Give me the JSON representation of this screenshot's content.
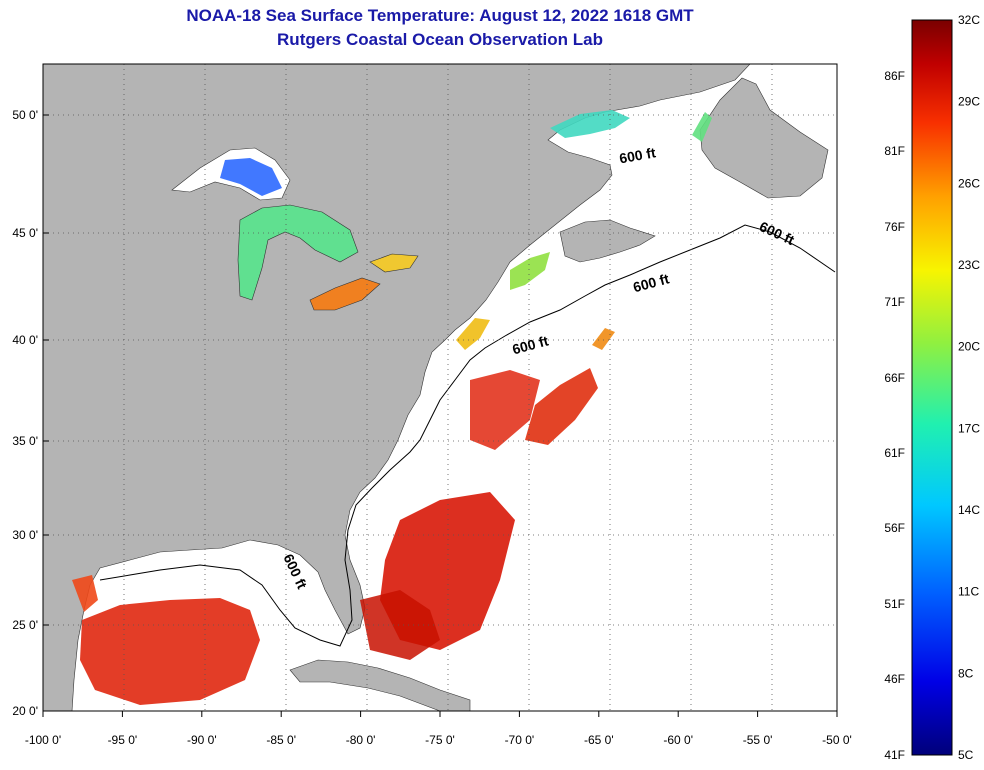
{
  "header": {
    "title": "NOAA-18 Sea Surface Temperature:  August 12, 2022 1618 GMT",
    "subtitle": "Rutgers Coastal Ocean Observation Lab"
  },
  "map": {
    "lon_range": [
      -100,
      -50
    ],
    "lat_range": [
      20,
      52.5
    ],
    "lon_ticks": [
      "-100 0'",
      "-95 0'",
      "-90 0'",
      "-85 0'",
      "-80 0'",
      "-75 0'",
      "-70 0'",
      "-65 0'",
      "-60 0'",
      "-55 0'",
      "-50 0'"
    ],
    "lat_ticks": [
      {
        "value": 50,
        "label": "50 0'"
      },
      {
        "value": 45,
        "label": "45 0'"
      },
      {
        "value": 40,
        "label": "40 0'"
      },
      {
        "value": 35,
        "label": "35 0'"
      },
      {
        "value": 30,
        "label": "30 0'"
      },
      {
        "value": 25,
        "label": "25 0'"
      },
      {
        "value": 20,
        "label": "20 0'"
      }
    ],
    "contour_label": "600 ft",
    "contour_label_count": 5,
    "land_color": "#b4b4b4",
    "no_data_color": "#ffffff"
  },
  "colorbar": {
    "range_c": [
      5,
      32
    ],
    "celsius_labels": [
      "32C",
      "29C",
      "26C",
      "23C",
      "20C",
      "17C",
      "14C",
      "11C",
      "8C",
      "5C"
    ],
    "fahrenheit_labels": [
      "86F",
      "81F",
      "76F",
      "71F",
      "66F",
      "61F",
      "56F",
      "51F",
      "46F",
      "41F"
    ]
  }
}
